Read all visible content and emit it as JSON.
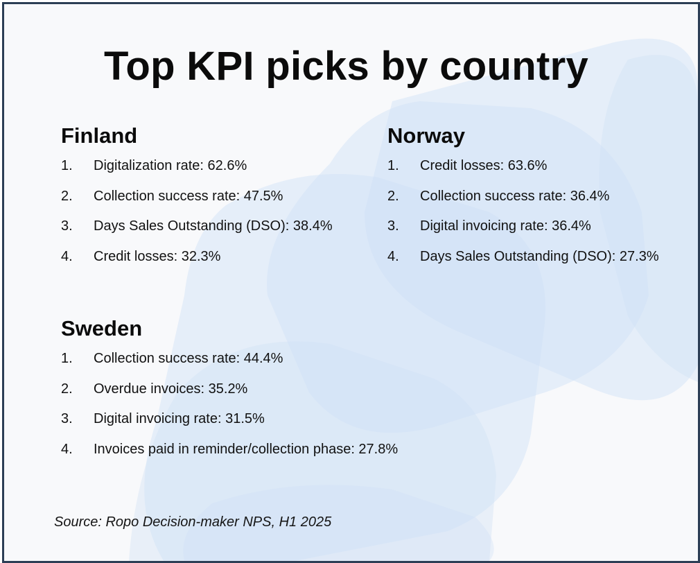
{
  "title": "Top KPI picks by country",
  "colors": {
    "background": "#f8f9fb",
    "border": "#2c3e55",
    "accent_shape": "#cfe0f6",
    "text": "#0b0b0b"
  },
  "sections": [
    {
      "country": "Finland",
      "items": [
        {
          "num": "1.",
          "text": "Digitalization rate: 62.6%"
        },
        {
          "num": "2.",
          "text": "Collection success rate: 47.5%"
        },
        {
          "num": "3.",
          "text": "Days Sales Outstanding (DSO): 38.4%"
        },
        {
          "num": "4.",
          "text": "Credit losses: 32.3%"
        }
      ]
    },
    {
      "country": "Norway",
      "items": [
        {
          "num": "1.",
          "text": "Credit losses: 63.6%"
        },
        {
          "num": "2.",
          "text": "Collection success rate: 36.4%"
        },
        {
          "num": "3.",
          "text": "Digital invoicing rate: 36.4%"
        },
        {
          "num": "4.",
          "text": "Days Sales Outstanding (DSO): 27.3%"
        }
      ]
    },
    {
      "country": "Sweden",
      "items": [
        {
          "num": "1.",
          "text": "Collection success rate: 44.4%"
        },
        {
          "num": "2.",
          "text": "Overdue invoices: 35.2%"
        },
        {
          "num": "3.",
          "text": "Digital invoicing rate: 31.5%"
        },
        {
          "num": "4.",
          "text": "Invoices paid in reminder/collection phase: 27.8%"
        }
      ]
    }
  ],
  "source": "Source: Ropo Decision-maker NPS, H1 2025"
}
